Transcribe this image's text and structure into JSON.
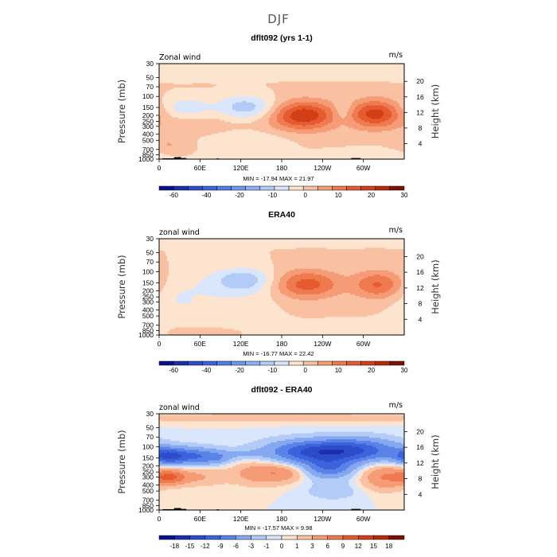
{
  "figure": {
    "title": "DJF"
  },
  "chart_data": [
    {
      "type": "heatmap",
      "title": "dflt092 (yrs 1-1)",
      "left_label": "Zonal wind",
      "right_label": "m/s",
      "ylabel_left": "Pressure (mb)",
      "ylabel_right": "Height (km)",
      "x_ticks": [
        "0",
        "60E",
        "120E",
        "180",
        "120W",
        "60W"
      ],
      "x_tick_lons": [
        0,
        60,
        120,
        180,
        240,
        300
      ],
      "xlim": [
        0,
        360
      ],
      "y_ticks_pressure": [
        "30",
        "50",
        "70",
        "100",
        "150",
        "200",
        "250",
        "300",
        "400",
        "500",
        "700",
        "850",
        "1000"
      ],
      "y_tick_values": [
        30,
        50,
        70,
        100,
        150,
        200,
        250,
        300,
        400,
        500,
        700,
        850,
        1000
      ],
      "ylim": [
        1000,
        30
      ],
      "y_scale": "log",
      "y_ticks_height": [
        "4",
        "8",
        "12",
        "16",
        "20"
      ],
      "height_values": [
        4,
        8,
        12,
        16,
        20
      ],
      "min": -17.94,
      "max": 21.97,
      "minmax_text": "MIN = -17.94   MAX =  21.97",
      "colorbar": {
        "labels": [
          "-60",
          "-40",
          "-20",
          "-10",
          "0",
          "10",
          "20",
          "30"
        ],
        "levels": [
          -70,
          -60,
          -50,
          -40,
          -30,
          -20,
          -15,
          -10,
          -5,
          0,
          5,
          10,
          15,
          20,
          25,
          30
        ],
        "colors": [
          "#08138a",
          "#1a2fb0",
          "#2c4ccc",
          "#3d63dc",
          "#4f7fe6",
          "#6b97ee",
          "#8db0f3",
          "#b3ccf7",
          "#d9e6fb",
          "#fde4cf",
          "#f9c0a2",
          "#f59c76",
          "#ef7a4f",
          "#e55a2f",
          "#d33f17",
          "#b82a0a",
          "#7a1300"
        ]
      },
      "features": [
        {
          "lon": 115,
          "p": 40,
          "w": 170,
          "h": 0.18,
          "amp": -3
        },
        {
          "lon": 170,
          "p": 220,
          "w": 120,
          "h": 0.6,
          "amp": 3
        },
        {
          "lon": 40,
          "p": 150,
          "w": 25,
          "h": 0.28,
          "amp": -9
        },
        {
          "lon": 45,
          "p": 300,
          "w": 35,
          "h": 0.22,
          "amp": 3
        },
        {
          "lon": 128,
          "p": 150,
          "w": 32,
          "h": 0.32,
          "amp": -15
        },
        {
          "lon": 128,
          "p": 500,
          "w": 45,
          "h": 0.3,
          "amp": -5
        },
        {
          "lon": 212,
          "p": 200,
          "w": 32,
          "h": 0.36,
          "amp": 22
        },
        {
          "lon": 270,
          "p": 170,
          "w": 10,
          "h": 0.3,
          "amp": -7
        },
        {
          "lon": 318,
          "p": 190,
          "w": 26,
          "h": 0.36,
          "amp": 21
        },
        {
          "lon": 310,
          "p": 850,
          "w": 45,
          "h": 0.15,
          "amp": -5
        },
        {
          "lon": 15,
          "p": 600,
          "w": 20,
          "h": 0.25,
          "amp": 5
        }
      ],
      "terrain": [
        {
          "lon0": 5,
          "lon1": 22,
          "p": 970
        },
        {
          "lon0": 22,
          "lon1": 32,
          "p": 930
        },
        {
          "lon0": 32,
          "lon1": 40,
          "p": 960
        },
        {
          "lon0": 84,
          "lon1": 88,
          "p": 975
        },
        {
          "lon0": 282,
          "lon1": 296,
          "p": 960
        },
        {
          "lon0": 296,
          "lon1": 302,
          "p": 985
        }
      ]
    },
    {
      "type": "heatmap",
      "title": "ERA40",
      "left_label": "zonal wind",
      "right_label": "m/s",
      "ylabel_left": "Pressure (mb)",
      "ylabel_right": "Height (km)",
      "x_ticks": [
        "0",
        "60E",
        "120E",
        "180",
        "120W",
        "60W"
      ],
      "x_tick_lons": [
        0,
        60,
        120,
        180,
        240,
        300
      ],
      "xlim": [
        0,
        360
      ],
      "y_ticks_pressure": [
        "30",
        "50",
        "70",
        "100",
        "150",
        "200",
        "250",
        "300",
        "400",
        "500",
        "700",
        "850",
        "1000"
      ],
      "y_tick_values": [
        30,
        50,
        70,
        100,
        150,
        200,
        250,
        300,
        400,
        500,
        700,
        850,
        1000
      ],
      "ylim": [
        1000,
        30
      ],
      "y_scale": "log",
      "y_ticks_height": [
        "4",
        "8",
        "12",
        "16",
        "20"
      ],
      "height_values": [
        4,
        8,
        12,
        16,
        20
      ],
      "min": -16.77,
      "max": 22.42,
      "minmax_text": "MIN = -16.77   MAX =  22.42",
      "colorbar": {
        "labels": [
          "-60",
          "-40",
          "-20",
          "-10",
          "0",
          "10",
          "20",
          "30"
        ],
        "levels": [
          -70,
          -60,
          -50,
          -40,
          -30,
          -20,
          -15,
          -10,
          -5,
          0,
          5,
          10,
          15,
          20,
          25,
          30
        ],
        "colors": [
          "#08138a",
          "#1a2fb0",
          "#2c4ccc",
          "#3d63dc",
          "#4f7fe6",
          "#6b97ee",
          "#8db0f3",
          "#b3ccf7",
          "#d9e6fb",
          "#fde4cf",
          "#f9c0a2",
          "#f59c76",
          "#ef7a4f",
          "#e55a2f",
          "#d33f17",
          "#b82a0a",
          "#7a1300"
        ]
      },
      "features": [
        {
          "lon": 130,
          "p": 30,
          "w": 120,
          "h": 0.12,
          "amp": -3
        },
        {
          "lon": 120,
          "p": 180,
          "w": 70,
          "h": 0.42,
          "amp": -6
        },
        {
          "lon": 125,
          "p": 130,
          "w": 30,
          "h": 0.28,
          "amp": -11
        },
        {
          "lon": 60,
          "p": 400,
          "w": 40,
          "h": 0.3,
          "amp": -3
        },
        {
          "lon": 20,
          "p": 250,
          "w": 25,
          "h": 0.4,
          "amp": -3
        },
        {
          "lon": 240,
          "p": 160,
          "w": 40,
          "h": 0.4,
          "amp": -4
        },
        {
          "lon": 218,
          "p": 160,
          "w": 38,
          "h": 0.38,
          "amp": 23
        },
        {
          "lon": 322,
          "p": 160,
          "w": 26,
          "h": 0.36,
          "amp": 16
        },
        {
          "lon": 300,
          "p": 900,
          "w": 60,
          "h": 0.18,
          "amp": -4
        },
        {
          "lon": 40,
          "p": 900,
          "w": 30,
          "h": 0.12,
          "amp": 3
        }
      ],
      "terrain": []
    },
    {
      "type": "heatmap",
      "title": "dflt092 - ERA40",
      "left_label": "zonal wind",
      "right_label": "m/s",
      "ylabel_left": "Pressure (mb)",
      "ylabel_right": "Height (km)",
      "x_ticks": [
        "0",
        "60E",
        "120E",
        "180",
        "120W",
        "60W"
      ],
      "x_tick_lons": [
        0,
        60,
        120,
        180,
        240,
        300
      ],
      "xlim": [
        0,
        360
      ],
      "y_ticks_pressure": [
        "30",
        "50",
        "70",
        "100",
        "150",
        "200",
        "250",
        "300",
        "400",
        "500",
        "700",
        "850",
        "1000"
      ],
      "y_tick_values": [
        30,
        50,
        70,
        100,
        150,
        200,
        250,
        300,
        400,
        500,
        700,
        850,
        1000
      ],
      "ylim": [
        1000,
        30
      ],
      "y_scale": "log",
      "y_ticks_height": [
        "4",
        "8",
        "12",
        "16",
        "20"
      ],
      "height_values": [
        4,
        8,
        12,
        16,
        20
      ],
      "min": -17.57,
      "max": 9.98,
      "minmax_text": "MIN = -17.57   MAX =   9.98",
      "colorbar": {
        "labels": [
          "-18",
          "-15",
          "-12",
          "-9",
          "-6",
          "-3",
          "-1",
          "0",
          "1",
          "3",
          "6",
          "9",
          "12",
          "15",
          "18"
        ],
        "levels": [
          -18,
          -15,
          -12,
          -9,
          -6,
          -3,
          -1,
          0,
          1,
          3,
          6,
          9,
          12,
          15,
          18
        ],
        "colors": [
          "#08138a",
          "#1a2fb0",
          "#2c4ccc",
          "#3d63dc",
          "#5a83e8",
          "#86a8f1",
          "#b3ccf7",
          "#d9e6fb",
          "#fde4cf",
          "#f9c0a2",
          "#f59c76",
          "#ef7a4f",
          "#e55a2f",
          "#d33f17",
          "#b82a0a",
          "#7a1300"
        ]
      },
      "features": [
        {
          "lon": 180,
          "p": 35,
          "w": 200,
          "h": 0.12,
          "amp": 2
        },
        {
          "lon": 40,
          "p": 140,
          "w": 35,
          "h": 0.22,
          "amp": -10
        },
        {
          "lon": 10,
          "p": 140,
          "w": 15,
          "h": 0.2,
          "amp": -6
        },
        {
          "lon": 15,
          "p": 300,
          "w": 18,
          "h": 0.2,
          "amp": 9
        },
        {
          "lon": 60,
          "p": 300,
          "w": 25,
          "h": 0.22,
          "amp": 3
        },
        {
          "lon": 150,
          "p": 260,
          "w": 30,
          "h": 0.3,
          "amp": 5
        },
        {
          "lon": 185,
          "p": 260,
          "w": 20,
          "h": 0.2,
          "amp": 3
        },
        {
          "lon": 85,
          "p": 150,
          "w": 14,
          "h": 0.16,
          "amp": -3
        },
        {
          "lon": 125,
          "p": 130,
          "w": 20,
          "h": 0.12,
          "amp": -2
        },
        {
          "lon": 232,
          "p": 120,
          "w": 50,
          "h": 0.3,
          "amp": -13
        },
        {
          "lon": 250,
          "p": 220,
          "w": 25,
          "h": 0.25,
          "amp": -8
        },
        {
          "lon": 300,
          "p": 110,
          "w": 40,
          "h": 0.3,
          "amp": -7
        },
        {
          "lon": 330,
          "p": 300,
          "w": 22,
          "h": 0.32,
          "amp": 6
        },
        {
          "lon": 255,
          "p": 500,
          "w": 30,
          "h": 0.25,
          "amp": -2
        }
      ],
      "terrain": [
        {
          "lon0": 5,
          "lon1": 22,
          "p": 970
        },
        {
          "lon0": 22,
          "lon1": 32,
          "p": 930
        },
        {
          "lon0": 32,
          "lon1": 40,
          "p": 960
        },
        {
          "lon0": 84,
          "lon1": 88,
          "p": 975
        },
        {
          "lon0": 282,
          "lon1": 296,
          "p": 960
        },
        {
          "lon0": 296,
          "lon1": 302,
          "p": 985
        }
      ]
    }
  ]
}
